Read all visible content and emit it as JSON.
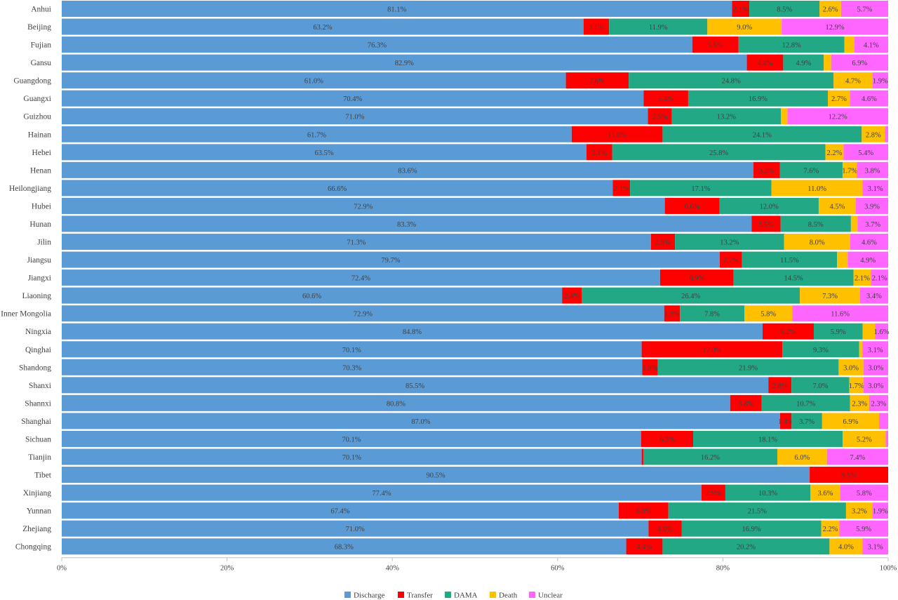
{
  "chart_data": {
    "type": "bar",
    "orientation": "horizontal",
    "stacked": true,
    "percent_stacked": true,
    "title": "",
    "xlabel": "",
    "ylabel": "",
    "xlim": [
      0,
      100
    ],
    "x_ticks": [
      "0%",
      "20%",
      "40%",
      "60%",
      "80%",
      "100%"
    ],
    "grid": false,
    "legend_position": "bottom",
    "categories": [
      "Anhui",
      "Beijing",
      "Fujian",
      "Gansu",
      "Guangdong",
      "Guangxi",
      "Guizhou",
      "Hainan",
      "Hebei",
      "Henan",
      "Heilongjiang",
      "Hubei",
      "Hunan",
      "Jilin",
      "Jiangsu",
      "Jiangxi",
      "Liaoning",
      "Inner Mongolia",
      "Ningxia",
      "Qinghai",
      "Shandong",
      "Shanxi",
      "Shannxi",
      "Shanghai",
      "Sichuan",
      "Tianjin",
      "Tibet",
      "Xinjiang",
      "Yunnan",
      "Zhejiang",
      "Chongqing"
    ],
    "series": [
      {
        "name": "Discharge",
        "color": "#5b9bd5",
        "values": [
          81.1,
          63.2,
          76.3,
          82.9,
          61.0,
          70.4,
          71.0,
          61.7,
          63.5,
          83.6,
          66.6,
          72.9,
          83.3,
          71.3,
          79.7,
          72.4,
          60.6,
          72.9,
          84.8,
          70.1,
          70.3,
          85.5,
          80.8,
          87.0,
          70.1,
          70.1,
          90.5,
          77.4,
          67.4,
          71.0,
          68.3
        ],
        "labels": [
          "81.1%",
          "63.2%",
          "76.3%",
          "82.9%",
          "61.0%",
          "70.4%",
          "71.0%",
          "61.7%",
          "63.5%",
          "83.6%",
          "66.6%",
          "72.9%",
          "83.3%",
          "71.3%",
          "79.7%",
          "72.4%",
          "60.6%",
          "72.9%",
          "84.8%",
          "70.1%",
          "70.3%",
          "85.5%",
          "80.8%",
          "87.0%",
          "70.1%",
          "70.1%",
          "90.5%",
          "77.4%",
          "67.4%",
          "71.0%",
          "68.3%"
        ]
      },
      {
        "name": "Transfer",
        "color": "#ff0000",
        "values": [
          2.1,
          3.1,
          5.6,
          4.4,
          7.6,
          5.4,
          2.9,
          11.0,
          3.1,
          3.2,
          2.1,
          6.6,
          3.5,
          2.9,
          2.7,
          8.9,
          2.4,
          1.9,
          6.2,
          17.0,
          1.9,
          2.8,
          3.8,
          1.4,
          6.3,
          0.2,
          9.5,
          2.9,
          6.0,
          4.0,
          4.4
        ],
        "labels": [
          "2.1%",
          "3.1%",
          "5.6%",
          "4.4%",
          "7.6%",
          "5.4%",
          "2.9%",
          "11.0%",
          "3.1%",
          "3.2%",
          "2.1%",
          "6.6%",
          "3.5%",
          "2.9%",
          "2.7%",
          "8.9%",
          "2.4%",
          "1.9%",
          "6.2%",
          "17.0%",
          "1.9%",
          "2.8%",
          "3.8%",
          "1.4%",
          "6.3%",
          "",
          "9.5%",
          "2.9%",
          "6.0%",
          "4.0%",
          "4.4%"
        ]
      },
      {
        "name": "DAMA",
        "color": "#22a884",
        "values": [
          8.5,
          11.9,
          12.8,
          4.9,
          24.8,
          16.9,
          13.2,
          24.1,
          25.8,
          7.6,
          17.1,
          12.0,
          8.5,
          13.2,
          11.5,
          14.5,
          26.4,
          7.8,
          5.9,
          9.3,
          21.9,
          7.0,
          10.7,
          3.7,
          18.1,
          16.2,
          0,
          10.3,
          21.5,
          16.9,
          20.2
        ],
        "labels": [
          "8.5%",
          "11.9%",
          "12.8%",
          "4.9%",
          "24.8%",
          "16.9%",
          "13.2%",
          "24.1%",
          "25.8%",
          "7.6%",
          "17.1%",
          "12.0%",
          "8.5%",
          "13.2%",
          "11.5%",
          "14.5%",
          "26.4%",
          "7.8%",
          "5.9%",
          "9.3%",
          "21.9%",
          "7.0%",
          "10.7%",
          "3.7%",
          "18.1%",
          "16.2%",
          "",
          "10.3%",
          "21.5%",
          "16.9%",
          "20.2%"
        ]
      },
      {
        "name": "Death",
        "color": "#ffc000",
        "values": [
          2.6,
          9.0,
          1.2,
          0.9,
          4.7,
          2.7,
          0.8,
          2.8,
          2.2,
          1.7,
          11.0,
          4.5,
          0.8,
          8.0,
          1.3,
          2.1,
          7.3,
          5.8,
          1.5,
          0.4,
          3.0,
          1.7,
          2.3,
          6.9,
          5.2,
          6.0,
          0,
          3.6,
          3.2,
          2.2,
          4.0
        ],
        "labels": [
          "2.6%",
          "9.0%",
          "",
          "",
          "4.7%",
          "2.7%",
          "",
          "2.8%",
          "2.2%",
          "1.7%",
          "11.0%",
          "4.5%",
          "",
          "8.0%",
          "",
          "2.1%",
          "7.3%",
          "5.8%",
          "",
          "",
          "3.0%",
          "1.7%",
          "2.3%",
          "6.9%",
          "5.2%",
          "6.0%",
          "",
          "3.6%",
          "3.2%",
          "2.2%",
          "4.0%"
        ]
      },
      {
        "name": "Unclear",
        "color": "#ff66ff",
        "values": [
          5.7,
          12.9,
          4.1,
          6.9,
          1.9,
          4.6,
          12.2,
          0.4,
          5.4,
          3.8,
          3.1,
          3.9,
          3.7,
          4.6,
          4.9,
          2.1,
          3.4,
          11.6,
          1.6,
          3.1,
          3.0,
          3.0,
          2.3,
          1.1,
          0.3,
          7.4,
          0,
          5.8,
          1.9,
          5.9,
          3.1
        ],
        "labels": [
          "5.7%",
          "12.9%",
          "4.1%",
          "6.9%",
          "1.9%",
          "4.6%",
          "12.2%",
          "",
          "5.4%",
          "3.8%",
          "3.1%",
          "3.9%",
          "3.7%",
          "4.6%",
          "4.9%",
          "2.1%",
          "3.4%",
          "11.6%",
          "1.6%",
          "3.1%",
          "3.0%",
          "3.0%",
          "2.3%",
          "",
          "",
          "7.4%",
          "",
          "5.8%",
          "1.9%",
          "5.9%",
          "3.1%"
        ]
      }
    ]
  }
}
